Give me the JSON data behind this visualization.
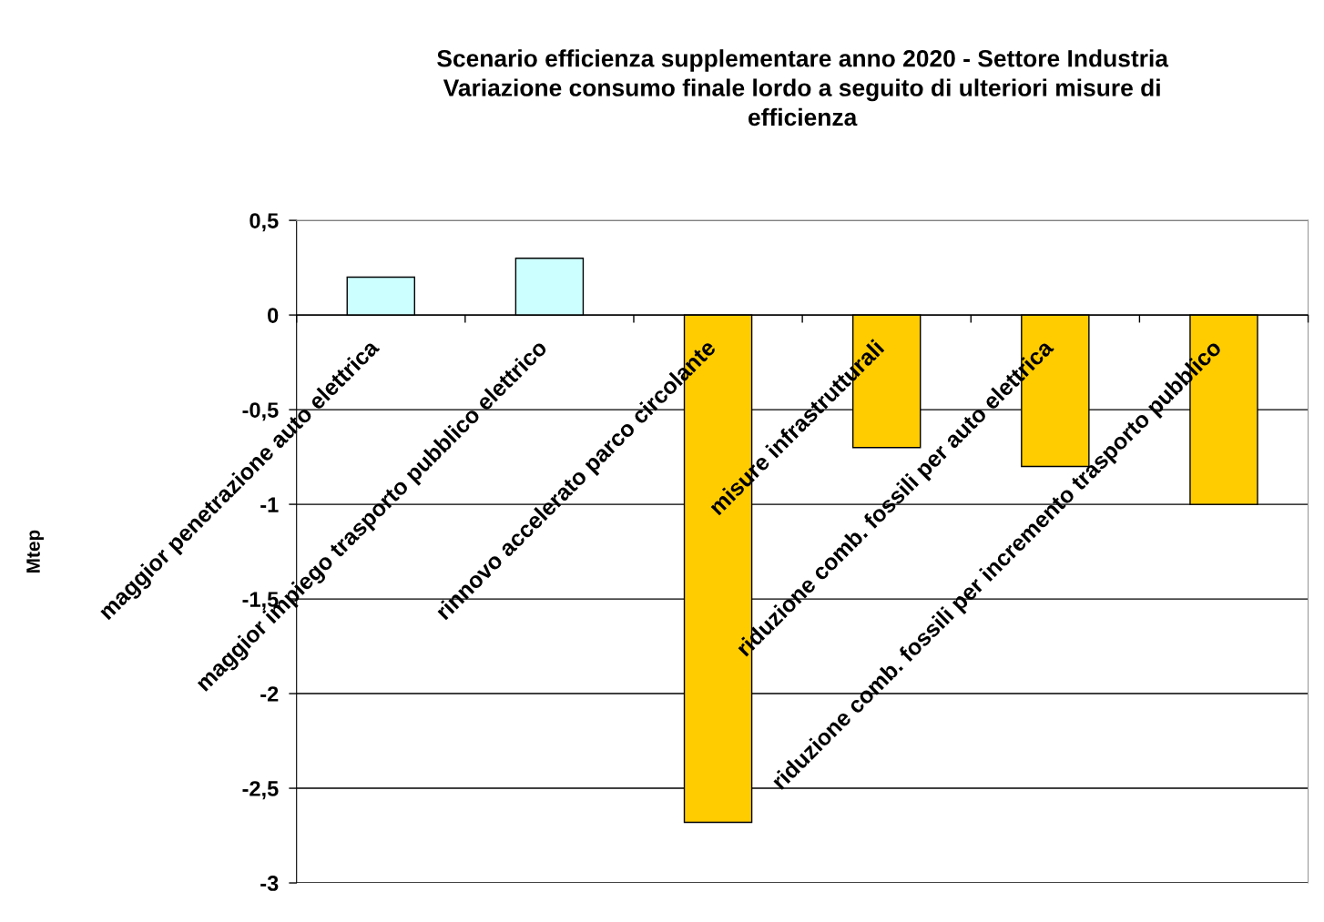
{
  "chart_data": {
    "type": "bar",
    "title": "Scenario efficienza supplementare anno 2020 - Settore Industria\nVariazione consumo finale lordo a seguito di ulteriori misure di\nefficienza",
    "ylabel": "Mtep",
    "categories": [
      "maggior penetrazione auto elettrica",
      "maggior impiego trasporto pubblico elettrico",
      "rinnovo accelerato parco circolante",
      "misure infrastrutturali",
      "riduzione comb. fossili per auto elettrica",
      "riduzione comb. fossili per incremento trasporto pubblico"
    ],
    "values": [
      0.2,
      0.3,
      -2.68,
      -0.7,
      -0.8,
      -1.0
    ],
    "colors": [
      "#ccffff",
      "#ccffff",
      "#ffcc00",
      "#ffcc00",
      "#ffcc00",
      "#ffcc00"
    ],
    "ylim": [
      -3,
      0.5
    ],
    "yticks": [
      {
        "value": 0.5,
        "label": "0,5"
      },
      0,
      {
        "value": -0.5,
        "label": "-0,5"
      },
      -1,
      {
        "value": -1.5,
        "label": "-1,5"
      },
      -2,
      {
        "value": -2.5,
        "label": "-2,5"
      },
      -3
    ],
    "grid": "y",
    "legend": false
  }
}
